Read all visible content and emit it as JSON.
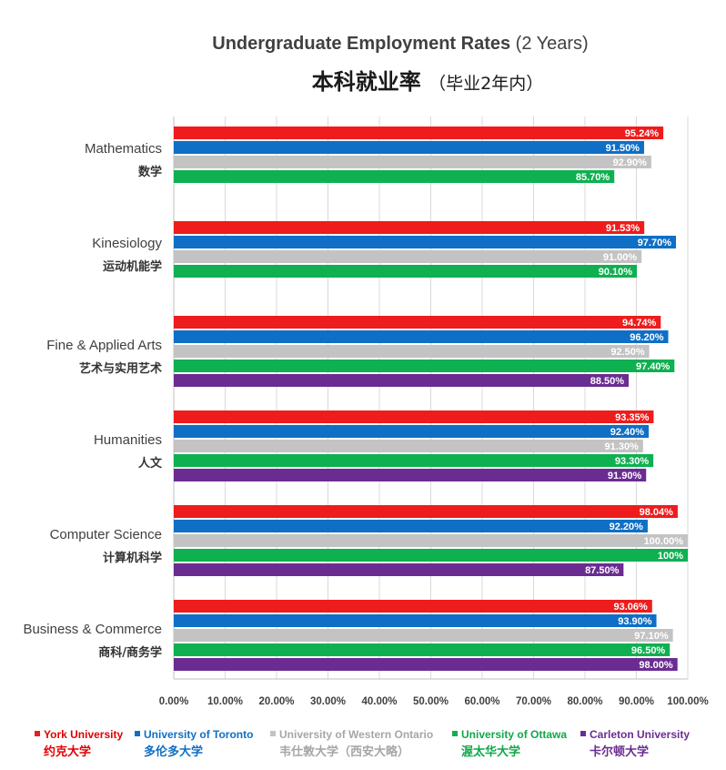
{
  "chart_data": {
    "type": "bar",
    "orientation": "horizontal",
    "title": "Undergraduate Employment Rates",
    "title_suffix": "(2 Years)",
    "subtitle": "本科就业率",
    "subtitle_suffix": "（毕业2年内）",
    "xlim": [
      0,
      100
    ],
    "x_ticks": [
      "0.00%",
      "10.00%",
      "20.00%",
      "30.00%",
      "40.00%",
      "50.00%",
      "60.00%",
      "70.00%",
      "80.00%",
      "90.00%",
      "100.00%"
    ],
    "grid": true,
    "legend_position": "bottom",
    "categories": [
      {
        "en": "Mathematics",
        "zh": "数学"
      },
      {
        "en": "Kinesiology",
        "zh": "运动机能学"
      },
      {
        "en": "Fine & Applied Arts",
        "zh": "艺术与实用艺术"
      },
      {
        "en": "Humanities",
        "zh": "人文"
      },
      {
        "en": "Computer Science",
        "zh": "计算机科学"
      },
      {
        "en": "Business & Commerce",
        "zh": "商科/商务学"
      }
    ],
    "series": [
      {
        "name": "York University",
        "name_zh": "约克大学",
        "color": "#ee1c1c",
        "label_color": "#e00000",
        "values": [
          95.24,
          91.53,
          94.74,
          93.35,
          98.04,
          93.06
        ],
        "labels": [
          "95.24%",
          "91.53%",
          "94.74%",
          "93.35%",
          "98.04%",
          "93.06%"
        ]
      },
      {
        "name": "University of Toronto",
        "name_zh": "多伦多大学",
        "color": "#0f6fc6",
        "label_color": "#0f6fc6",
        "values": [
          91.5,
          97.7,
          96.2,
          92.4,
          92.2,
          93.9
        ],
        "labels": [
          "91.50%",
          "97.70%",
          "96.20%",
          "92.40%",
          "92.20%",
          "93.90%"
        ]
      },
      {
        "name": "University of Western Ontario",
        "name_zh": "韦仕敦大学（西安大略）",
        "color": "#c3c3c3",
        "label_color": "#a6a6a6",
        "values": [
          92.9,
          91.0,
          92.5,
          91.3,
          100.0,
          97.1
        ],
        "labels": [
          "92.90%",
          "91.00%",
          "92.50%",
          "91.30%",
          "100.00%",
          "97.10%"
        ]
      },
      {
        "name": "University of Ottawa",
        "name_zh": "渥太华大学",
        "color": "#0fb050",
        "label_color": "#0fa84a",
        "values": [
          85.7,
          90.1,
          97.4,
          93.3,
          100,
          96.5
        ],
        "labels": [
          "85.70%",
          "90.10%",
          "97.40%",
          "93.30%",
          "100%",
          "96.50%"
        ]
      },
      {
        "name": "Carleton University",
        "name_zh": "卡尔顿大学",
        "color": "#6b2c91",
        "label_color": "#6b2c91",
        "values": [
          null,
          null,
          88.5,
          91.9,
          87.5,
          98.0
        ],
        "labels": [
          null,
          null,
          "88.50%",
          "91.90%",
          "87.50%",
          "98.00%"
        ]
      }
    ]
  }
}
